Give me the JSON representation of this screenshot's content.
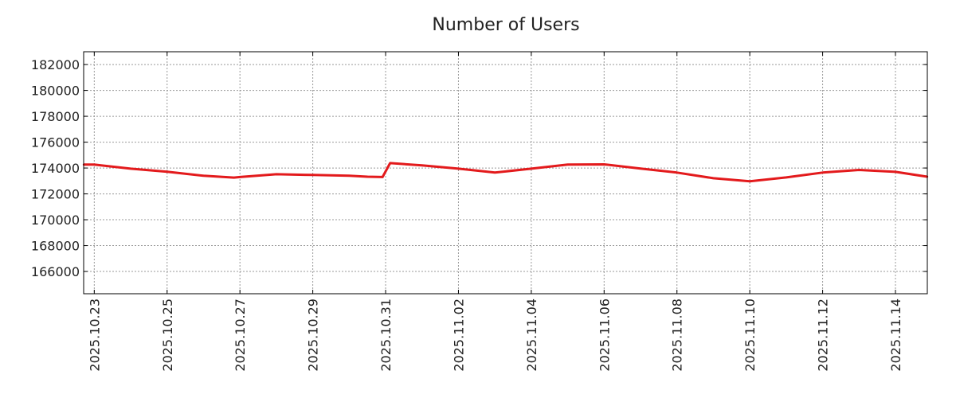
{
  "chart_data": {
    "type": "line",
    "title": "Number of Users",
    "xlabel": "",
    "ylabel": "",
    "grid": true,
    "xlim": [
      "2025-10-22T17:00",
      "2025-11-14T21:00"
    ],
    "ylim": [
      164280,
      182990
    ],
    "yticks": [
      166000,
      168000,
      170000,
      172000,
      174000,
      176000,
      178000,
      180000,
      182000
    ],
    "xticks": [
      "2025.10.23",
      "2025.10.25",
      "2025.10.27",
      "2025.10.29",
      "2025.10.31",
      "2025.11.02",
      "2025.11.04",
      "2025.11.06",
      "2025.11.08",
      "2025.11.10",
      "2025.11.12",
      "2025.11.14"
    ],
    "series": [
      {
        "name": "Number of Users",
        "color": "#e31a1c",
        "points": [
          [
            "2025-10-22T17:00",
            174260
          ],
          [
            "2025-10-23T00:00",
            174260
          ],
          [
            "2025-10-24T00:00",
            173950
          ],
          [
            "2025-10-25T00:00",
            173710
          ],
          [
            "2025-10-26T00:00",
            173400
          ],
          [
            "2025-10-26T20:00",
            173260
          ],
          [
            "2025-10-27T00:00",
            173300
          ],
          [
            "2025-10-28T00:00",
            173520
          ],
          [
            "2025-10-29T00:00",
            173460
          ],
          [
            "2025-10-30T00:00",
            173400
          ],
          [
            "2025-10-30T12:00",
            173330
          ],
          [
            "2025-10-30T22:00",
            173300
          ],
          [
            "2025-10-31T03:00",
            174380
          ],
          [
            "2025-11-01T00:00",
            174200
          ],
          [
            "2025-11-02T00:00",
            173950
          ],
          [
            "2025-11-03T00:00",
            173650
          ],
          [
            "2025-11-04T00:00",
            173950
          ],
          [
            "2025-11-05T00:00",
            174260
          ],
          [
            "2025-11-06T00:00",
            174280
          ],
          [
            "2025-11-07T00:00",
            173960
          ],
          [
            "2025-11-08T00:00",
            173650
          ],
          [
            "2025-11-09T00:00",
            173210
          ],
          [
            "2025-11-10T00:00",
            172970
          ],
          [
            "2025-11-11T00:00",
            173270
          ],
          [
            "2025-11-12T00:00",
            173650
          ],
          [
            "2025-11-13T00:00",
            173850
          ],
          [
            "2025-11-14T00:00",
            173700
          ],
          [
            "2025-11-14T21:00",
            173330
          ]
        ]
      }
    ]
  }
}
